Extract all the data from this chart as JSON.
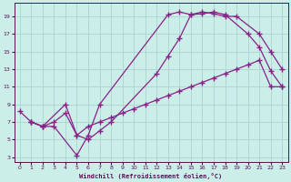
{
  "xlabel": "Windchill (Refroidissement éolien,°C)",
  "background_color": "#cceee8",
  "grid_color": "#aad4ce",
  "line_color": "#882288",
  "xlim_min": -0.5,
  "xlim_max": 23.5,
  "ylim_min": 2.5,
  "ylim_max": 20.5,
  "xticks": [
    0,
    1,
    2,
    3,
    4,
    5,
    6,
    7,
    8,
    9,
    10,
    11,
    12,
    13,
    14,
    15,
    16,
    17,
    18,
    19,
    20,
    21,
    22,
    23
  ],
  "yticks": [
    3,
    5,
    7,
    9,
    11,
    13,
    15,
    17,
    19
  ],
  "line1_x": [
    1,
    2,
    3,
    5,
    6,
    7,
    13,
    14,
    15,
    16,
    17,
    18,
    19,
    21,
    22,
    23
  ],
  "line1_y": [
    7.0,
    6.5,
    6.5,
    3.2,
    5.5,
    9.0,
    19.2,
    19.5,
    19.2,
    19.5,
    19.3,
    19.0,
    19.0,
    17.0,
    15.0,
    13.0
  ],
  "line2_x": [
    0,
    1,
    2,
    4,
    5,
    6,
    7,
    8,
    12,
    13,
    14,
    15,
    16,
    17,
    18,
    20,
    21,
    22,
    23
  ],
  "line2_y": [
    8.2,
    7.0,
    6.5,
    9.0,
    5.5,
    5.0,
    6.0,
    7.0,
    12.5,
    14.5,
    16.5,
    19.2,
    19.3,
    19.5,
    19.2,
    17.0,
    15.5,
    12.8,
    11.0
  ],
  "line3_x": [
    1,
    2,
    3,
    4,
    5,
    6,
    7,
    8,
    9,
    10,
    11,
    12,
    13,
    14,
    15,
    16,
    17,
    18,
    19,
    20,
    21,
    22,
    23
  ],
  "line3_y": [
    7.0,
    6.5,
    7.0,
    8.0,
    5.5,
    6.5,
    7.0,
    7.5,
    8.0,
    8.5,
    9.0,
    9.5,
    10.0,
    10.5,
    11.0,
    11.5,
    12.0,
    12.5,
    13.0,
    13.5,
    14.0,
    11.0,
    11.0
  ]
}
